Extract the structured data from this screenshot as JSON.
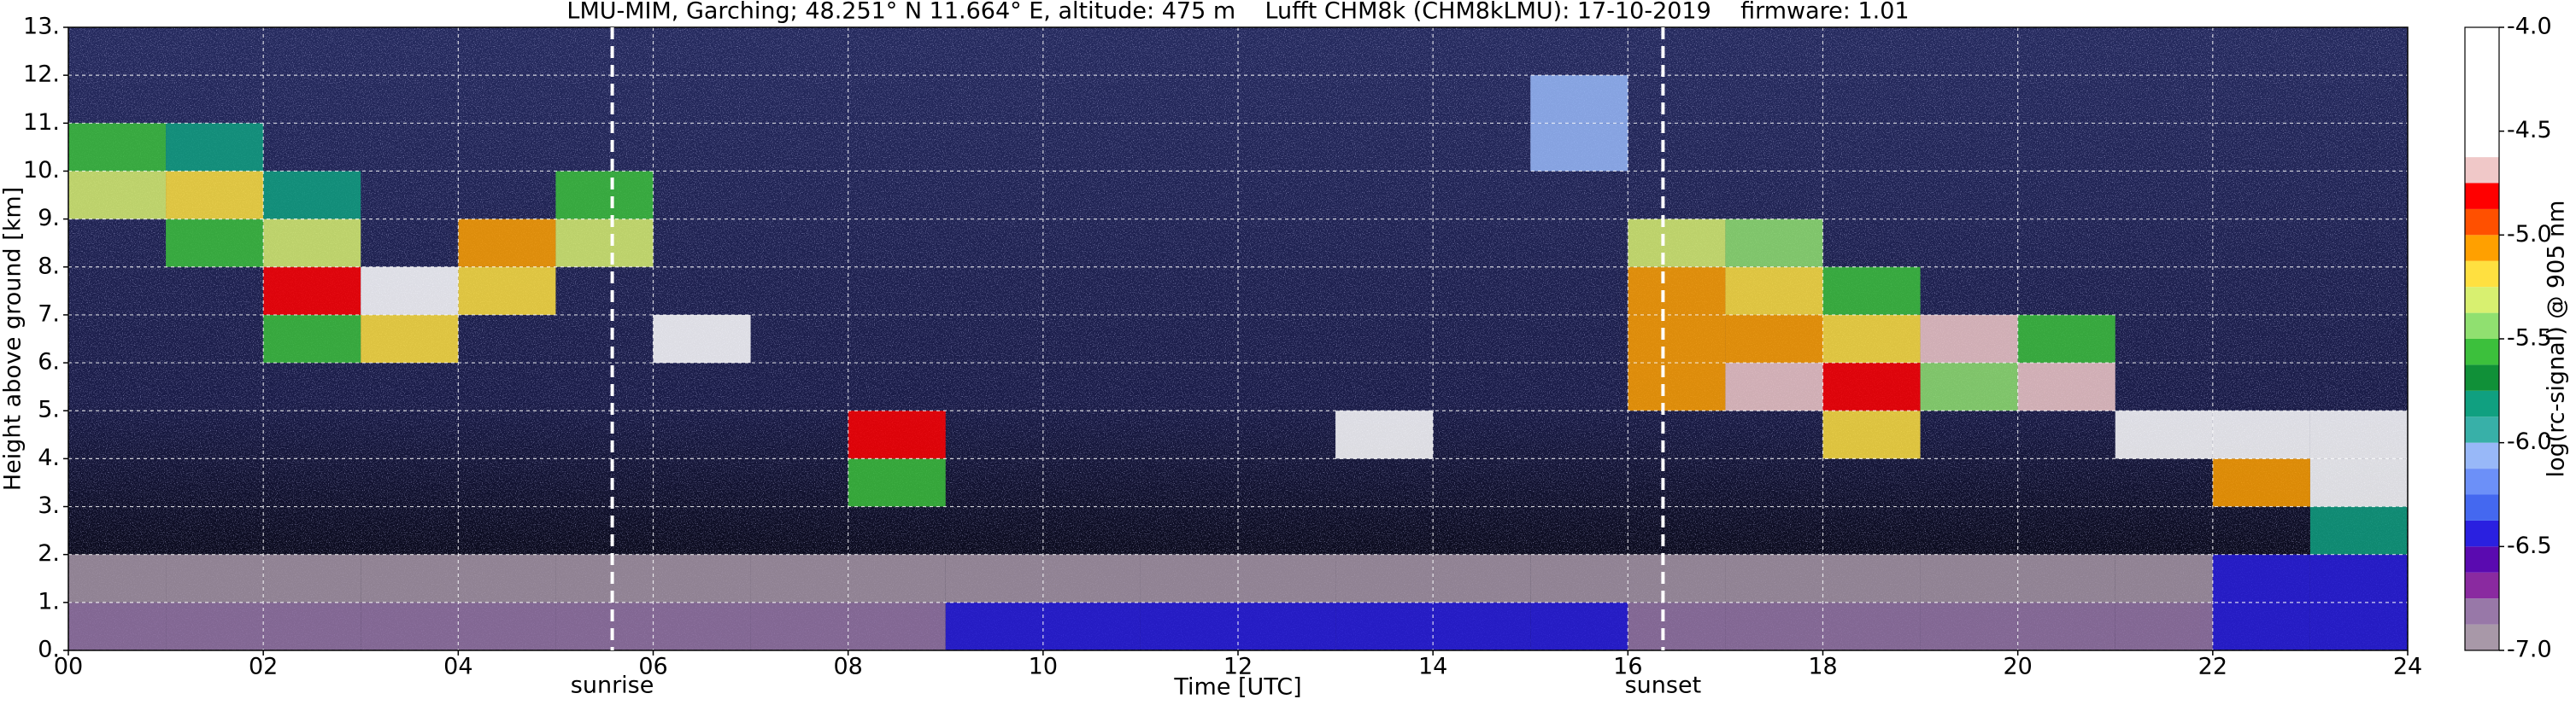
{
  "chart_data": {
    "type": "heatmap",
    "title": "LMU-MIM, Garching; 48.251° N 11.664° E, altitude: 475 m    Lufft CHM8k (CHM8kLMU): 17-10-2019    firmware: 1.01",
    "xlabel": "Time [UTC]",
    "ylabel": "Height above ground [km]",
    "x": [
      0,
      1,
      2,
      3,
      4,
      5,
      6,
      7,
      8,
      9,
      10,
      11,
      12,
      13,
      14,
      15,
      16,
      17,
      18,
      19,
      20,
      21,
      22,
      23,
      24
    ],
    "y": [
      0,
      1,
      2,
      3,
      4,
      5,
      6,
      7,
      8,
      9,
      10,
      11,
      12,
      13
    ],
    "z": [
      [
        -6.8,
        -6.8,
        -6.8,
        -6.8,
        -6.8,
        -6.8,
        -6.8,
        -6.8,
        -6.8,
        -6.4,
        -6.4,
        -6.4,
        -6.4,
        -6.4,
        -6.4,
        -6.4,
        -6.8,
        -6.8,
        -6.8,
        -6.8,
        -6.8,
        -6.8,
        -6.4,
        -6.4
      ],
      [
        -6.9,
        -6.9,
        -6.9,
        -6.9,
        -6.9,
        -6.9,
        -6.9,
        -6.9,
        -6.9,
        -6.9,
        -6.9,
        -6.9,
        -6.9,
        -6.9,
        -6.9,
        -6.9,
        -6.9,
        -6.9,
        -6.9,
        -6.9,
        -6.9,
        -6.9,
        -6.4,
        -6.4
      ],
      [
        null,
        null,
        null,
        null,
        null,
        null,
        null,
        null,
        null,
        null,
        null,
        null,
        null,
        null,
        null,
        null,
        null,
        null,
        null,
        null,
        null,
        null,
        null,
        -5.8
      ],
      [
        null,
        null,
        null,
        null,
        null,
        null,
        null,
        null,
        -5.6,
        null,
        null,
        null,
        null,
        null,
        null,
        null,
        null,
        null,
        null,
        null,
        null,
        null,
        -5.0,
        -4.6
      ],
      [
        null,
        null,
        null,
        null,
        null,
        null,
        null,
        null,
        -4.8,
        null,
        null,
        null,
        null,
        -4.6,
        null,
        null,
        null,
        null,
        -5.2,
        null,
        null,
        -4.6,
        -4.6,
        -4.6
      ],
      [
        null,
        null,
        null,
        null,
        null,
        null,
        null,
        null,
        null,
        null,
        null,
        null,
        null,
        null,
        null,
        null,
        -5.0,
        -4.7,
        -4.8,
        -5.4,
        -4.7,
        null,
        null,
        null
      ],
      [
        null,
        null,
        -5.6,
        -5.2,
        null,
        null,
        -4.5,
        null,
        null,
        null,
        null,
        null,
        null,
        null,
        null,
        null,
        -5.0,
        -5.1,
        -5.2,
        -4.7,
        -5.6,
        null,
        null,
        null
      ],
      [
        null,
        null,
        -4.8,
        -4.6,
        -5.2,
        null,
        null,
        null,
        null,
        null,
        null,
        null,
        null,
        null,
        null,
        null,
        -5.1,
        -5.2,
        -5.6,
        null,
        null,
        null,
        null,
        null
      ],
      [
        null,
        -5.6,
        -5.3,
        null,
        -5.1,
        -5.3,
        null,
        null,
        null,
        null,
        null,
        null,
        null,
        null,
        null,
        null,
        -5.3,
        -5.4,
        null,
        null,
        null,
        null,
        null,
        null
      ],
      [
        -5.3,
        -5.2,
        -5.8,
        null,
        null,
        -5.6,
        null,
        null,
        null,
        null,
        null,
        null,
        null,
        null,
        null,
        null,
        null,
        null,
        null,
        null,
        null,
        null,
        null,
        null
      ],
      [
        -5.5,
        -5.8,
        null,
        null,
        null,
        null,
        null,
        null,
        null,
        null,
        null,
        null,
        null,
        null,
        null,
        -6.0,
        null,
        null,
        null,
        null,
        null,
        null,
        null,
        null
      ],
      [
        null,
        null,
        null,
        null,
        null,
        null,
        null,
        null,
        null,
        null,
        null,
        null,
        null,
        null,
        null,
        -6.1,
        null,
        null,
        null,
        null,
        null,
        null,
        null,
        null
      ],
      [
        null,
        null,
        null,
        null,
        null,
        null,
        null,
        null,
        null,
        null,
        null,
        null,
        null,
        null,
        null,
        null,
        null,
        null,
        null,
        null,
        null,
        null,
        null,
        null
      ]
    ],
    "xlim": [
      0,
      24
    ],
    "ylim": [
      0,
      13
    ],
    "xticks": [
      {
        "value": 0,
        "label": "00"
      },
      {
        "value": 2,
        "label": "02"
      },
      {
        "value": 4,
        "label": "04"
      },
      {
        "value": 6,
        "label": "06"
      },
      {
        "value": 8,
        "label": "08"
      },
      {
        "value": 10,
        "label": "10"
      },
      {
        "value": 12,
        "label": "12"
      },
      {
        "value": 14,
        "label": "14"
      },
      {
        "value": 16,
        "label": "16"
      },
      {
        "value": 18,
        "label": "18"
      },
      {
        "value": 20,
        "label": "20"
      },
      {
        "value": 22,
        "label": "22"
      },
      {
        "value": 24,
        "label": "24"
      }
    ],
    "yticks": [
      {
        "value": 0,
        "label": "0."
      },
      {
        "value": 1,
        "label": "1."
      },
      {
        "value": 2,
        "label": "2."
      },
      {
        "value": 3,
        "label": "3."
      },
      {
        "value": 4,
        "label": "4."
      },
      {
        "value": 5,
        "label": "5."
      },
      {
        "value": 6,
        "label": "6."
      },
      {
        "value": 7,
        "label": "7."
      },
      {
        "value": 8,
        "label": "8."
      },
      {
        "value": 9,
        "label": "9."
      },
      {
        "value": 10,
        "label": "10."
      },
      {
        "value": 11,
        "label": "11."
      },
      {
        "value": 12,
        "label": "12."
      },
      {
        "value": 13,
        "label": "13."
      }
    ],
    "grid": true,
    "annotations": [
      {
        "text": "sunrise",
        "x": 5.58
      },
      {
        "text": "sunset",
        "x": 16.36
      }
    ],
    "colorbar": {
      "label": "log(rc-signal) @ 905 nm",
      "lim": [
        -7,
        -4
      ],
      "levels": [
        -7,
        -6.875,
        -6.75,
        -6.625,
        -6.5,
        -6.375,
        -6.25,
        -6.125,
        -6,
        -5.875,
        -5.75,
        -5.625,
        -5.5,
        -5.375,
        -5.25,
        -5.125,
        -5,
        -4.875,
        -4.75,
        -4.625,
        -4.5,
        -4.375,
        -4.25,
        -4.125,
        -4
      ],
      "colors": [
        "#a898a8",
        "#9878a8",
        "#8a2aa0",
        "#5a0ab0",
        "#2a20e0",
        "#4468f0",
        "#6c90f8",
        "#98b8f8",
        "#38b0a8",
        "#10a080",
        "#109038",
        "#3cc03c",
        "#90e070",
        "#d8f070",
        "#ffe040",
        "#ffa000",
        "#ff5000",
        "#ff0000",
        "#f0c8c8",
        "#ffffff",
        "#ffffff",
        "#ffffff",
        "#ffffff",
        "#ffffff"
      ],
      "ticks": [
        {
          "value": -4,
          "label": "-4.0"
        },
        {
          "value": -4.5,
          "label": "-4.5"
        },
        {
          "value": -5,
          "label": "-5.0"
        },
        {
          "value": -5.5,
          "label": "-5.5"
        },
        {
          "value": -6,
          "label": "-6.0"
        },
        {
          "value": -6.5,
          "label": "-6.5"
        },
        {
          "value": -7,
          "label": "-7.0"
        }
      ]
    }
  }
}
